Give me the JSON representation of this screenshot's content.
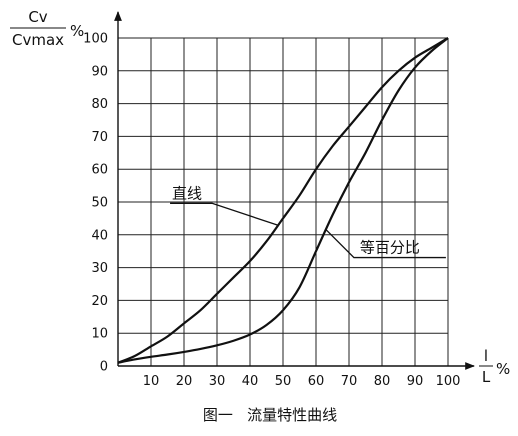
{
  "chart_data": {
    "type": "line",
    "caption": "图一   流量特性曲线",
    "ylabel": {
      "numerator": "Cv",
      "denominator": "Cvmax",
      "unit": "%"
    },
    "xlabel": {
      "numerator": "l",
      "denominator": "L",
      "unit": "%"
    },
    "xlim": [
      0,
      100
    ],
    "ylim": [
      0,
      100
    ],
    "x_ticks": [
      "10",
      "20",
      "30",
      "40",
      "50",
      "60",
      "70",
      "80",
      "90",
      "100"
    ],
    "y_ticks": [
      "0",
      "10",
      "20",
      "30",
      "40",
      "50",
      "60",
      "70",
      "80",
      "90",
      "100"
    ],
    "grid": true,
    "series": [
      {
        "name": "直线",
        "x": [
          0,
          5,
          10,
          15,
          20,
          25,
          30,
          35,
          40,
          45,
          50,
          55,
          60,
          65,
          70,
          75,
          80,
          85,
          90,
          95,
          100
        ],
        "y": [
          1,
          3,
          6,
          9,
          13,
          17,
          22,
          27,
          32,
          38,
          45,
          52,
          60,
          67,
          73,
          79,
          85,
          90,
          94,
          97,
          100
        ]
      },
      {
        "name": "等百分比",
        "x": [
          0,
          5,
          10,
          15,
          20,
          25,
          30,
          35,
          40,
          45,
          50,
          55,
          60,
          65,
          70,
          75,
          80,
          85,
          90,
          95,
          100
        ],
        "y": [
          1,
          2,
          2.8,
          3.5,
          4.3,
          5.2,
          6.3,
          7.7,
          9.6,
          12.5,
          17,
          24,
          35,
          46,
          56,
          65,
          75,
          84,
          91,
          96,
          100
        ]
      }
    ],
    "annotations": [
      {
        "text": "直线",
        "series": 0,
        "at_x": 48.5
      },
      {
        "text": "等百分比",
        "series": 1,
        "at_x": 63
      }
    ]
  }
}
